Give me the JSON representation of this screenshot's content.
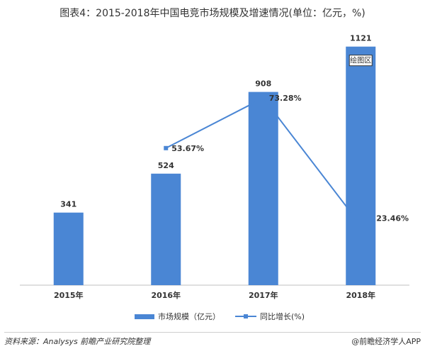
{
  "title": "图表4：2015-2018年中国电竞市场规模及增速情况(单位：亿元，%)",
  "chart_data": {
    "type": "bar",
    "categories": [
      "2015年",
      "2016年",
      "2017年",
      "2018年"
    ],
    "series": [
      {
        "name": "市场规模（亿元）",
        "type": "bar",
        "values": [
          341,
          524,
          908,
          1121
        ],
        "labels": [
          "341",
          "524",
          "908",
          "1121"
        ]
      },
      {
        "name": "同比增长(%)",
        "type": "line",
        "values": [
          null,
          53.67,
          73.28,
          23.46
        ],
        "labels": [
          "",
          "53.67%",
          "73.28%",
          "23.46%"
        ]
      }
    ],
    "ylim_bar": [
      0,
      1200
    ],
    "ylim_line": [
      0,
      100
    ],
    "annotation": "绘图区",
    "colors": {
      "bar": "#4a86d4",
      "line": "#4a86d4"
    }
  },
  "footer": {
    "source": "资料来源：Analysys 前瞻产业研究院整理",
    "brand": "@前瞻经济学人APP"
  }
}
